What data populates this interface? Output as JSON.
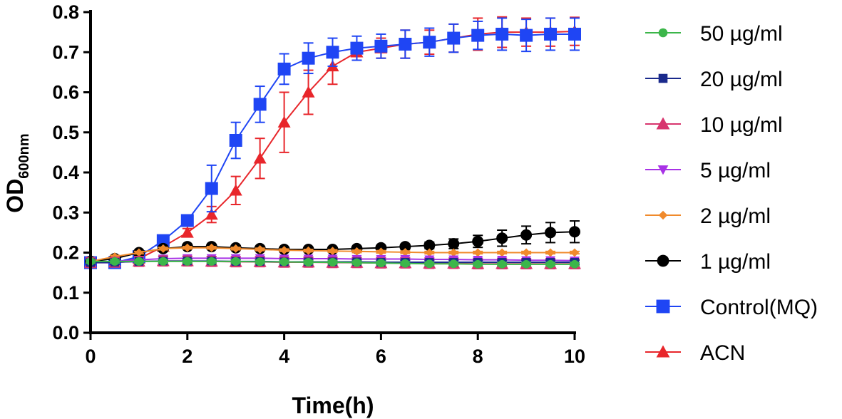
{
  "chart_data": {
    "type": "line",
    "title": "",
    "xlabel": "Time(h)",
    "ylabel_main": "OD",
    "ylabel_sub": "600nm",
    "xlim": [
      0,
      10
    ],
    "ylim": [
      0,
      0.8
    ],
    "xticks": [
      "0",
      "2",
      "4",
      "6",
      "8",
      "10"
    ],
    "xtick_values": [
      0,
      2,
      4,
      6,
      8,
      10
    ],
    "yticks": [
      "0.0",
      "0.1",
      "0.2",
      "0.3",
      "0.4",
      "0.5",
      "0.6",
      "0.7",
      "0.8"
    ],
    "ytick_values": [
      0,
      0.1,
      0.2,
      0.3,
      0.4,
      0.5,
      0.6,
      0.7,
      0.8
    ],
    "x": [
      0,
      0.5,
      1,
      1.5,
      2,
      2.5,
      3,
      3.5,
      4,
      4.5,
      5,
      5.5,
      6,
      6.5,
      7,
      7.5,
      8,
      8.5,
      9,
      9.5,
      10
    ],
    "legend_position": "right",
    "series": [
      {
        "name": "ACN",
        "color": "#e8262b",
        "marker": "triangle",
        "values": [
          0.175,
          0.175,
          0.185,
          0.215,
          0.25,
          0.295,
          0.355,
          0.435,
          0.525,
          0.6,
          0.665,
          0.7,
          0.71,
          0.72,
          0.725,
          0.735,
          0.745,
          0.75,
          0.75,
          0.75,
          0.752
        ],
        "errors": [
          0.005,
          0.005,
          0.005,
          0.01,
          0.01,
          0.02,
          0.035,
          0.05,
          0.075,
          0.055,
          0.045,
          0.02,
          0.025,
          0.035,
          0.03,
          0.035,
          0.04,
          0.038,
          0.035,
          0.035,
          0.035
        ]
      },
      {
        "name": "Control(MQ)",
        "color": "#1f45f4",
        "marker": "square",
        "values": [
          0.175,
          0.175,
          0.19,
          0.23,
          0.28,
          0.36,
          0.48,
          0.57,
          0.658,
          0.685,
          0.7,
          0.71,
          0.715,
          0.72,
          0.725,
          0.735,
          0.742,
          0.745,
          0.742,
          0.745,
          0.745
        ],
        "errors": [
          0.005,
          0.005,
          0.005,
          0.01,
          0.012,
          0.058,
          0.045,
          0.045,
          0.038,
          0.038,
          0.035,
          0.03,
          0.03,
          0.035,
          0.035,
          0.035,
          0.035,
          0.04,
          0.04,
          0.04,
          0.04
        ]
      },
      {
        "name": "1 µg/ml",
        "color": "#000000",
        "marker": "circle",
        "values": [
          0.178,
          0.185,
          0.2,
          0.21,
          0.215,
          0.215,
          0.212,
          0.21,
          0.208,
          0.208,
          0.208,
          0.21,
          0.212,
          0.215,
          0.218,
          0.222,
          0.228,
          0.236,
          0.244,
          0.25,
          0.252
        ],
        "errors": [
          0.005,
          0.005,
          0.005,
          0.005,
          0.005,
          0.005,
          0.005,
          0.005,
          0.005,
          0.005,
          0.005,
          0.005,
          0.005,
          0.006,
          0.008,
          0.012,
          0.015,
          0.02,
          0.022,
          0.025,
          0.027
        ]
      },
      {
        "name": "2 µg/ml",
        "color": "#f08a2c",
        "marker": "diamond",
        "values": [
          0.178,
          0.19,
          0.2,
          0.21,
          0.212,
          0.212,
          0.21,
          0.208,
          0.206,
          0.205,
          0.204,
          0.203,
          0.202,
          0.201,
          0.2,
          0.2,
          0.2,
          0.2,
          0.2,
          0.2,
          0.2
        ],
        "errors": [
          0.003,
          0.003,
          0.003,
          0.003,
          0.003,
          0.003,
          0.003,
          0.003,
          0.003,
          0.003,
          0.003,
          0.003,
          0.003,
          0.003,
          0.003,
          0.003,
          0.003,
          0.003,
          0.003,
          0.003,
          0.003
        ]
      },
      {
        "name": "5 µg/ml",
        "color": "#a832e6",
        "marker": "triangle-down",
        "values": [
          0.175,
          0.178,
          0.182,
          0.185,
          0.186,
          0.186,
          0.186,
          0.186,
          0.185,
          0.185,
          0.185,
          0.184,
          0.184,
          0.184,
          0.183,
          0.183,
          0.182,
          0.182,
          0.181,
          0.181,
          0.18
        ],
        "errors": [
          0.004,
          0.004,
          0.004,
          0.004,
          0.004,
          0.004,
          0.004,
          0.004,
          0.004,
          0.004,
          0.004,
          0.004,
          0.004,
          0.004,
          0.004,
          0.004,
          0.004,
          0.004,
          0.004,
          0.004,
          0.004
        ]
      },
      {
        "name": "10 µg/ml",
        "color": "#d8356e",
        "marker": "triangle",
        "values": [
          0.175,
          0.176,
          0.178,
          0.179,
          0.179,
          0.178,
          0.177,
          0.177,
          0.176,
          0.176,
          0.175,
          0.175,
          0.174,
          0.174,
          0.173,
          0.173,
          0.172,
          0.172,
          0.172,
          0.172,
          0.172
        ],
        "errors": [
          0.012,
          0.012,
          0.012,
          0.012,
          0.012,
          0.012,
          0.012,
          0.012,
          0.012,
          0.012,
          0.012,
          0.012,
          0.012,
          0.012,
          0.012,
          0.012,
          0.012,
          0.012,
          0.012,
          0.012,
          0.012
        ]
      },
      {
        "name": "20 µg/ml",
        "color": "#1a2a8c",
        "marker": "square-small",
        "values": [
          0.175,
          0.176,
          0.178,
          0.179,
          0.179,
          0.179,
          0.178,
          0.178,
          0.177,
          0.177,
          0.177,
          0.177,
          0.176,
          0.176,
          0.176,
          0.176,
          0.176,
          0.176,
          0.176,
          0.176,
          0.176
        ],
        "errors": [
          0.005,
          0.005,
          0.005,
          0.005,
          0.005,
          0.005,
          0.005,
          0.005,
          0.005,
          0.005,
          0.005,
          0.005,
          0.005,
          0.005,
          0.005,
          0.005,
          0.005,
          0.005,
          0.005,
          0.005,
          0.005
        ]
      },
      {
        "name": "50 µg/ml",
        "color": "#3cb64a",
        "marker": "circle-small",
        "values": [
          0.178,
          0.178,
          0.178,
          0.178,
          0.178,
          0.178,
          0.178,
          0.177,
          0.177,
          0.176,
          0.176,
          0.175,
          0.174,
          0.173,
          0.172,
          0.172,
          0.171,
          0.171,
          0.171,
          0.171,
          0.171
        ],
        "errors": [
          0.004,
          0.004,
          0.004,
          0.004,
          0.004,
          0.004,
          0.004,
          0.004,
          0.004,
          0.004,
          0.004,
          0.004,
          0.004,
          0.004,
          0.004,
          0.004,
          0.004,
          0.004,
          0.004,
          0.004,
          0.004
        ]
      }
    ],
    "legend_order": [
      "50 µg/ml",
      "20 µg/ml",
      "10 µg/ml",
      "5 µg/ml",
      "2 µg/ml",
      "1 µg/ml",
      "Control(MQ)",
      "ACN"
    ]
  }
}
